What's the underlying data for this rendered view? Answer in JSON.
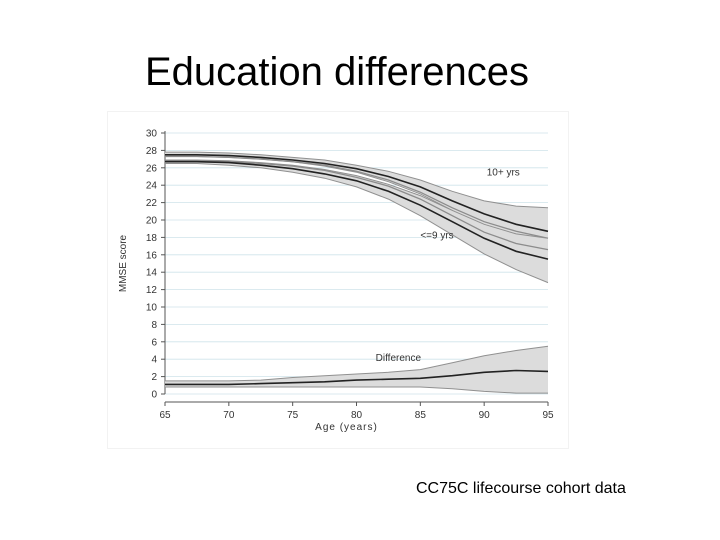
{
  "slide": {
    "title": "Education differences",
    "caption": "CC75C lifecourse cohort data"
  },
  "chart_data": {
    "type": "line",
    "title": "",
    "xlabel": "Age (years)",
    "ylabel": "MMSE score",
    "xlim": [
      65,
      95
    ],
    "ylim": [
      0,
      30
    ],
    "x_ticks": [
      65,
      70,
      75,
      80,
      85,
      90,
      95
    ],
    "y_ticks": [
      0,
      2,
      4,
      6,
      8,
      10,
      12,
      14,
      16,
      18,
      20,
      22,
      24,
      26,
      28,
      30
    ],
    "grid": "horizontal",
    "legend": "none",
    "annotations": [
      {
        "text": "10+ yrs",
        "x": 90.2,
        "y": 25.1
      },
      {
        "text": "<=9 yrs",
        "x": 85.0,
        "y": 17.9
      },
      {
        "text": "Difference",
        "x": 81.5,
        "y": 3.8
      }
    ],
    "colors": {
      "band": "#dcdcdc",
      "band_edge": "#909090",
      "main_line": "#222222",
      "inner_line": "#8c8c8c",
      "grid": "#cfe3ea"
    },
    "series": [
      {
        "x": [
          65,
          67.5,
          70,
          72.5,
          75,
          77.5,
          80,
          82.5,
          85,
          87.5,
          90,
          92.5,
          95
        ],
        "values": [
          27.5,
          27.5,
          27.4,
          27.2,
          26.9,
          26.5,
          25.9,
          25.0,
          23.8,
          22.2,
          20.7,
          19.5,
          18.7
        ],
        "lower": [
          27.3,
          27.3,
          27.2,
          27.0,
          26.7,
          26.2,
          25.5,
          24.4,
          23.0,
          21.1,
          19.2,
          17.6,
          16.3
        ],
        "upper": [
          27.8,
          27.8,
          27.7,
          27.5,
          27.2,
          26.9,
          26.3,
          25.6,
          24.6,
          23.3,
          22.2,
          21.6,
          21.4
        ],
        "mid": [
          27.3,
          27.3,
          27.2,
          27.0,
          26.7,
          26.3,
          25.6,
          24.6,
          23.2,
          21.4,
          19.8,
          18.7,
          17.9
        ]
      },
      {
        "x": [
          65,
          67.5,
          70,
          72.5,
          75,
          77.5,
          80,
          82.5,
          85,
          87.5,
          90,
          92.5,
          95
        ],
        "values": [
          26.7,
          26.7,
          26.6,
          26.3,
          25.9,
          25.3,
          24.5,
          23.3,
          21.7,
          19.8,
          17.9,
          16.4,
          15.5
        ],
        "lower": [
          26.5,
          26.5,
          26.3,
          26.0,
          25.5,
          24.8,
          23.8,
          22.4,
          20.5,
          18.3,
          16.1,
          14.3,
          12.8
        ],
        "upper": [
          26.9,
          26.9,
          26.8,
          26.6,
          26.3,
          25.8,
          25.1,
          24.1,
          22.8,
          21.1,
          19.5,
          18.4,
          17.9
        ],
        "mid": [
          26.8,
          26.8,
          26.7,
          26.5,
          26.2,
          25.7,
          24.9,
          23.9,
          22.4,
          20.5,
          18.6,
          17.3,
          16.6
        ]
      },
      {
        "x": [
          65,
          67.5,
          70,
          72.5,
          75,
          77.5,
          80,
          82.5,
          85,
          87.5,
          90,
          92.5,
          95
        ],
        "values": [
          1.1,
          1.1,
          1.1,
          1.2,
          1.3,
          1.4,
          1.6,
          1.7,
          1.8,
          2.1,
          2.5,
          2.7,
          2.6
        ],
        "lower": [
          0.8,
          0.8,
          0.8,
          0.8,
          0.8,
          0.8,
          0.8,
          0.8,
          0.8,
          0.6,
          0.3,
          0.1,
          0.1
        ],
        "upper": [
          1.5,
          1.5,
          1.5,
          1.6,
          1.9,
          2.1,
          2.3,
          2.5,
          2.8,
          3.6,
          4.4,
          5.0,
          5.5
        ]
      }
    ]
  }
}
